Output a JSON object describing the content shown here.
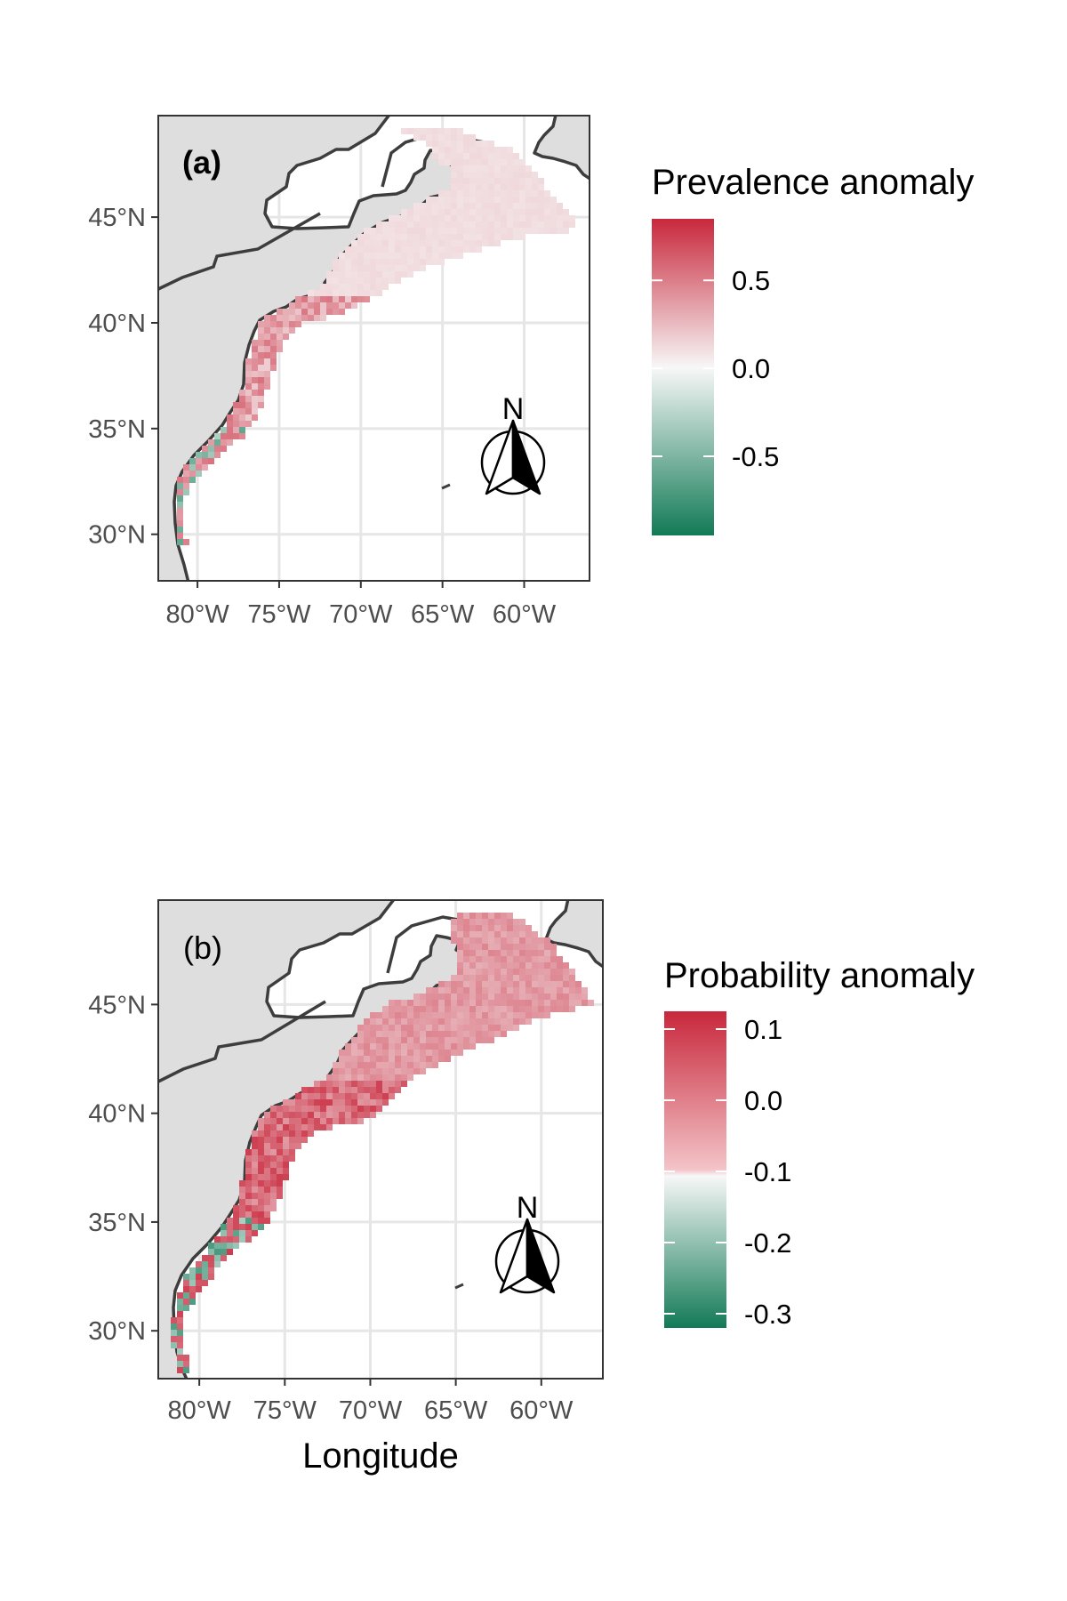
{
  "x_axis_title": "Longitude",
  "colors": {
    "land": "#dedede",
    "coast": "#3d3d3d",
    "grid": "#e6e6e6",
    "panel_border": "#333333",
    "high": "#c8283c",
    "mid": "#f7f7f7",
    "low": "#127a56"
  },
  "icons": {
    "north_arrow": "north-arrow-icon"
  },
  "panels": [
    {
      "label": "(a)",
      "label_bold": true,
      "north_letter": "N",
      "lon_ticks": [
        "80°W",
        "75°W",
        "70°W",
        "65°W",
        "60°W"
      ],
      "lat_ticks": [
        "45°N",
        "40°N",
        "35°N",
        "30°N"
      ],
      "lon_values": [
        -80,
        -75,
        -70,
        -65,
        -60
      ],
      "lat_values": [
        45,
        40,
        35,
        30
      ],
      "xlim": [
        -82.4,
        -56.0
      ],
      "ylim": [
        27.8,
        49.8
      ],
      "legend": {
        "title": "Prevalence anomaly",
        "labels": [
          "0.5",
          "0.0",
          "-0.5"
        ],
        "label_values": [
          0.5,
          0.0,
          -0.5
        ],
        "range": [
          -0.95,
          0.85
        ]
      }
    },
    {
      "label": "(b)",
      "label_bold": false,
      "north_letter": "N",
      "lon_ticks": [
        "80°W",
        "75°W",
        "70°W",
        "65°W",
        "60°W"
      ],
      "lat_ticks": [
        "45°N",
        "40°N",
        "35°N",
        "30°N"
      ],
      "lon_values": [
        -80,
        -75,
        -70,
        -65,
        -60
      ],
      "lat_values": [
        45,
        40,
        35,
        30
      ],
      "xlim": [
        -82.4,
        -56.4
      ],
      "ylim": [
        27.8,
        49.8
      ],
      "legend": {
        "title": "Probability anomaly",
        "labels": [
          "0.1",
          "0.0",
          "-0.1",
          "-0.2",
          "-0.3"
        ],
        "label_values": [
          0.1,
          0.0,
          -0.1,
          -0.2,
          -0.3
        ],
        "range": [
          -0.32,
          0.125
        ]
      }
    }
  ]
}
